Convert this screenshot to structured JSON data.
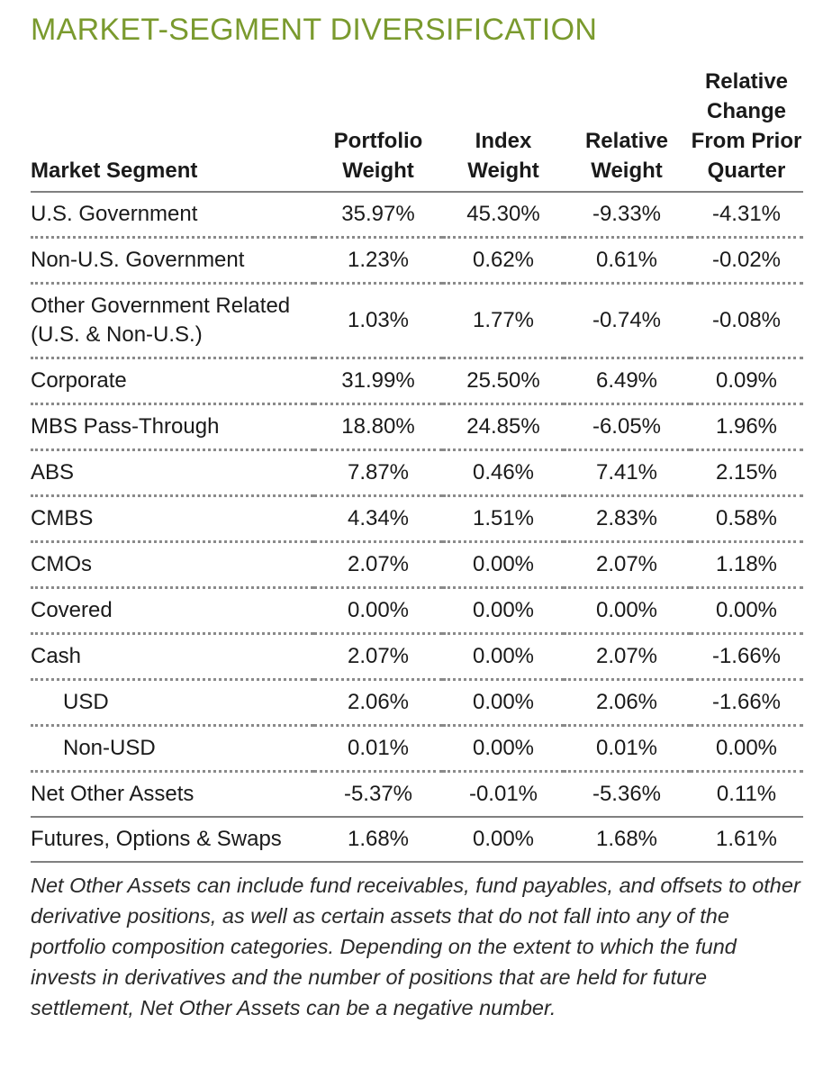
{
  "title": "MARKET-SEGMENT DIVERSIFICATION",
  "headers": {
    "segment": [
      "Market Segment"
    ],
    "portfolio_weight": [
      "Portfolio",
      "Weight"
    ],
    "index_weight": [
      "Index",
      "Weight"
    ],
    "relative_weight": [
      "Relative",
      "Weight"
    ],
    "relative_change": [
      "Relative",
      "Change",
      "From Prior",
      "Quarter"
    ]
  },
  "rows": [
    {
      "segment": "U.S. Government",
      "portfolio": "35.97%",
      "index": "45.30%",
      "relative": "-9.33%",
      "change": "-4.31%"
    },
    {
      "segment": "Non-U.S. Government",
      "portfolio": "1.23%",
      "index": "0.62%",
      "relative": "0.61%",
      "change": "-0.02%"
    },
    {
      "segment": "Other Government Related (U.S. & Non-U.S.)",
      "portfolio": "1.03%",
      "index": "1.77%",
      "relative": "-0.74%",
      "change": "-0.08%"
    },
    {
      "segment": "Corporate",
      "portfolio": "31.99%",
      "index": "25.50%",
      "relative": "6.49%",
      "change": "0.09%"
    },
    {
      "segment": "MBS Pass-Through",
      "portfolio": "18.80%",
      "index": "24.85%",
      "relative": "-6.05%",
      "change": "1.96%"
    },
    {
      "segment": "ABS",
      "portfolio": "7.87%",
      "index": "0.46%",
      "relative": "7.41%",
      "change": "2.15%"
    },
    {
      "segment": "CMBS",
      "portfolio": "4.34%",
      "index": "1.51%",
      "relative": "2.83%",
      "change": "0.58%"
    },
    {
      "segment": "CMOs",
      "portfolio": "2.07%",
      "index": "0.00%",
      "relative": "2.07%",
      "change": "1.18%"
    },
    {
      "segment": "Covered",
      "portfolio": "0.00%",
      "index": "0.00%",
      "relative": "0.00%",
      "change": "0.00%"
    },
    {
      "segment": "Cash",
      "portfolio": "2.07%",
      "index": "0.00%",
      "relative": "2.07%",
      "change": "-1.66%"
    },
    {
      "segment": "USD",
      "portfolio": "2.06%",
      "index": "0.00%",
      "relative": "2.06%",
      "change": "-1.66%"
    },
    {
      "segment": "Non-USD",
      "portfolio": "0.01%",
      "index": "0.00%",
      "relative": "0.01%",
      "change": "0.00%"
    },
    {
      "segment": "Net Other Assets",
      "portfolio": "-5.37%",
      "index": "-0.01%",
      "relative": "-5.36%",
      "change": "0.11%"
    },
    {
      "segment": "Futures, Options & Swaps",
      "portfolio": "1.68%",
      "index": "0.00%",
      "relative": "1.68%",
      "change": "1.61%"
    }
  ],
  "footnote": "Net Other Assets can include fund receivables, fund payables, and offsets to other derivative positions, as well as certain assets that do not fall into any of the portfolio composition categories. Depending on the extent to which the fund invests in derivatives and the number of positions that are held for future settlement, Net Other Assets can be a negative number.",
  "colors": {
    "title": "#7a9a2e",
    "rule": "#808080",
    "dotted_rule": "#8a8a8a"
  }
}
